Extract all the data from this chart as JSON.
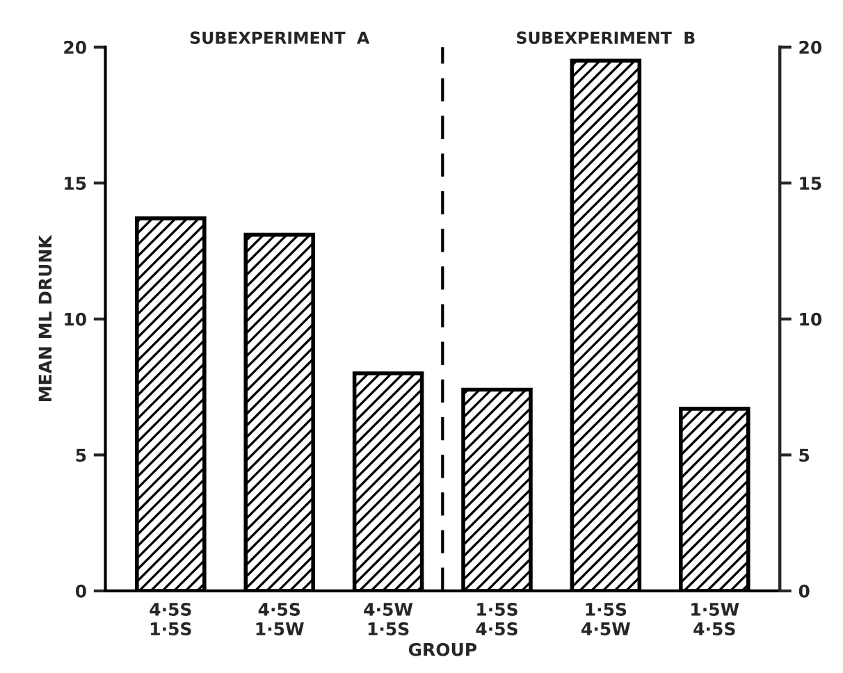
{
  "chart_data": {
    "type": "bar",
    "categories": [
      "4·5S\n1·5S",
      "4·5S\n1·5W",
      "4·5W\n1·5S",
      "1·5S\n4·5S",
      "1·5S\n4·5W",
      "1·5W\n4·5S"
    ],
    "series": [
      {
        "color": "#000000",
        "values": [
          13.7,
          13.1,
          8.0,
          7.4,
          19.5,
          6.7
        ]
      }
    ],
    "xlabel": "GROUP",
    "ylabel": "MEAN ML DRUNK",
    "ylim": [
      0,
      20
    ],
    "yticks": [
      0,
      5,
      10,
      15,
      20
    ],
    "y2lim": [
      0,
      20
    ],
    "y2ticks": [
      0,
      5,
      10,
      15,
      20
    ],
    "annotations": [
      "SUBEXPERIMENT  A",
      "SUBEXPERIMENT  B"
    ],
    "grid": false,
    "legend": false
  }
}
